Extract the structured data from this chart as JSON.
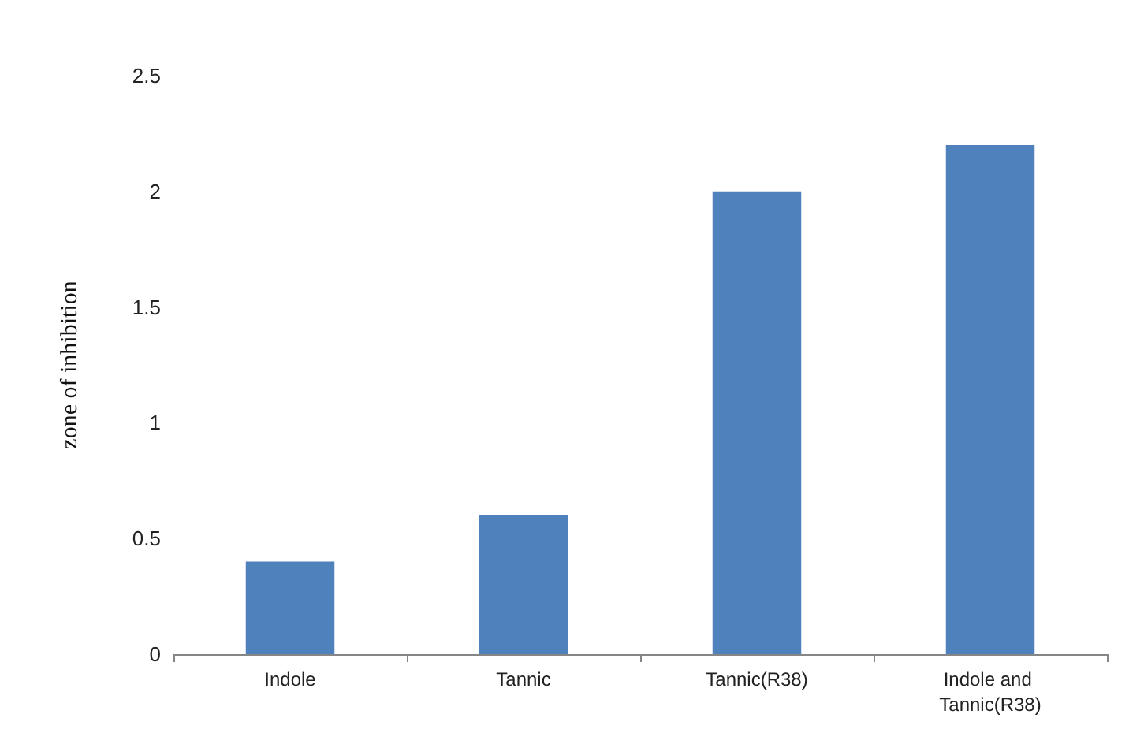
{
  "chart_data": {
    "type": "bar",
    "ylabel": "zone of inhibition",
    "categories": [
      "Indole",
      "Tannic",
      "Tannic(R38)",
      "Indole and Tannic(R38)"
    ],
    "values": [
      0.4,
      0.6,
      2.0,
      2.2
    ],
    "color": "#4f81bd",
    "ylim": [
      0,
      2.5
    ],
    "yticks": [
      0,
      0.5,
      1,
      1.5,
      2,
      2.5
    ]
  }
}
